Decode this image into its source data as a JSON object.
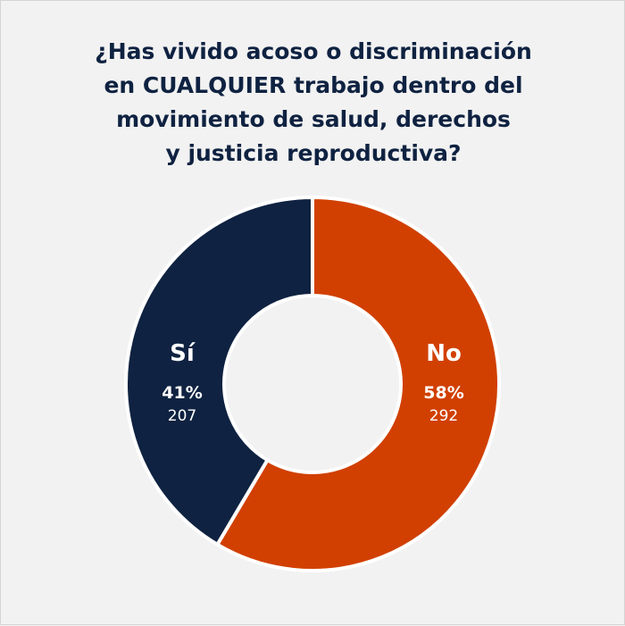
{
  "chart_data": {
    "type": "pie",
    "title_lines": [
      "¿Has vivido acoso o discriminación",
      "en CUALQUIER trabajo dentro del",
      "movimiento de salud, derechos",
      "y justicia reproductiva?"
    ],
    "donut": true,
    "slices": [
      {
        "label": "No",
        "percent_label": "58%",
        "count": 292,
        "color": "#d14000"
      },
      {
        "label": "Sí",
        "percent_label": "41%",
        "count": 207,
        "color": "#0f2241"
      }
    ],
    "legend": "none"
  },
  "colors": {
    "background": "#f2f2f2",
    "title": "#0f2241",
    "separator": "#ffffff"
  }
}
